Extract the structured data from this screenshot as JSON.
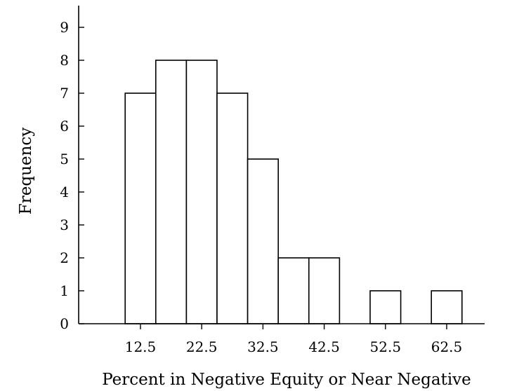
{
  "chart_data": {
    "type": "bar",
    "title": "",
    "xlabel": "Percent in Negative Equity or Near Negative",
    "ylabel": "Frequency",
    "bin_width": 5,
    "categories": [
      12.5,
      17.5,
      22.5,
      27.5,
      32.5,
      37.5,
      42.5,
      47.5,
      52.5,
      57.5,
      62.5
    ],
    "values": [
      7,
      8,
      8,
      7,
      5,
      2,
      2,
      0,
      1,
      0,
      1
    ],
    "x_tick_labels": [
      "12.5",
      "22.5",
      "32.5",
      "42.5",
      "52.5",
      "62.5"
    ],
    "y_tick_labels": [
      "0",
      "1",
      "2",
      "3",
      "4",
      "5",
      "6",
      "7",
      "8",
      "9"
    ],
    "xlim": [
      2.5,
      67.5
    ],
    "ylim": [
      0,
      9.5
    ],
    "grid": false,
    "legend": "none"
  }
}
